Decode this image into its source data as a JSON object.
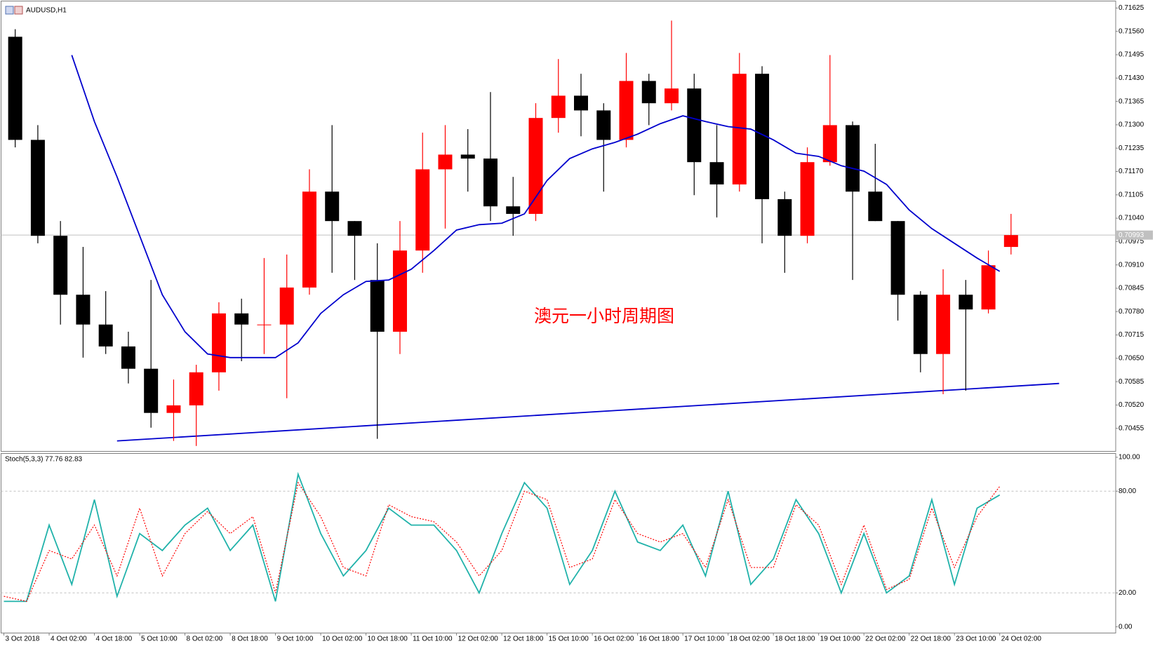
{
  "chart_data": [
    {
      "type": "candlestick",
      "title": "AUDUSD,H1",
      "annotation": "澳元一小时周期图",
      "annotation_color": "#ff0000",
      "up_color": "#ff0000",
      "down_color": "#000000",
      "x": [
        0,
        8,
        16,
        24,
        32,
        40,
        48,
        56,
        64,
        72,
        80,
        88,
        96,
        104,
        112,
        120,
        128,
        136,
        144,
        152,
        160,
        168,
        176,
        184,
        192,
        200,
        208,
        216,
        224,
        232,
        240,
        248,
        256,
        264,
        272,
        280,
        288,
        296,
        304,
        312,
        320,
        328,
        336,
        344,
        352
      ],
      "open": [
        0.71545,
        0.71258,
        0.70991,
        0.70827,
        0.70744,
        0.70683,
        0.70621,
        0.70498,
        0.70519,
        0.70611,
        0.70775,
        0.70744,
        0.70744,
        0.70847,
        0.71114,
        0.71032,
        0.70868,
        0.70724,
        0.7095,
        0.71176,
        0.71217,
        0.71206,
        0.71073,
        0.71052,
        0.71319,
        0.71381,
        0.7134,
        0.71258,
        0.71422,
        0.7136,
        0.71401,
        0.71196,
        0.71134,
        0.71442,
        0.71093,
        0.70991,
        0.71196,
        0.71299,
        0.71114,
        0.71032,
        0.70827,
        0.70662,
        0.70827,
        0.70786,
        0.7096
      ],
      "high": [
        0.71566,
        0.71299,
        0.71032,
        0.7096,
        0.70837,
        0.70724,
        0.70868,
        0.70591,
        0.70632,
        0.70806,
        0.70816,
        0.70929,
        0.70939,
        0.71176,
        0.71299,
        0.71032,
        0.7097,
        0.71032,
        0.71278,
        0.71299,
        0.71288,
        0.71391,
        0.71155,
        0.7136,
        0.71483,
        0.71442,
        0.7136,
        0.715,
        0.71442,
        0.7159,
        0.71442,
        0.71299,
        0.715,
        0.71463,
        0.71114,
        0.71237,
        0.71494,
        0.71309,
        0.71247,
        0.71032,
        0.70837,
        0.70898,
        0.70868,
        0.7095,
        0.71052
      ],
      "low": [
        0.71237,
        0.7097,
        0.70744,
        0.70652,
        0.70662,
        0.7058,
        0.70457,
        0.7042,
        0.70406,
        0.7056,
        0.70642,
        0.70662,
        0.70539,
        0.70827,
        0.70888,
        0.70868,
        0.70426,
        0.70662,
        0.70888,
        0.71011,
        0.71114,
        0.71032,
        0.70991,
        0.71032,
        0.71278,
        0.71268,
        0.71114,
        0.71237,
        0.71299,
        0.7134,
        0.71104,
        0.71042,
        0.71114,
        0.7097,
        0.70888,
        0.7097,
        0.71186,
        0.70868,
        0.71032,
        0.70755,
        0.70611,
        0.7055,
        0.7056,
        0.70775,
        0.70939
      ],
      "close": [
        0.71258,
        0.70991,
        0.70827,
        0.70744,
        0.70683,
        0.70621,
        0.70498,
        0.70519,
        0.70611,
        0.70775,
        0.70744,
        0.70744,
        0.70847,
        0.71114,
        0.71032,
        0.70991,
        0.70724,
        0.7095,
        0.71176,
        0.71217,
        0.71206,
        0.71073,
        0.71052,
        0.71319,
        0.71381,
        0.7134,
        0.71258,
        0.71422,
        0.7136,
        0.71401,
        0.71196,
        0.71134,
        0.71442,
        0.71093,
        0.70991,
        0.71196,
        0.71299,
        0.71114,
        0.71032,
        0.70827,
        0.70662,
        0.70827,
        0.70786,
        0.70909,
        0.70993
      ],
      "series": [
        {
          "color": "#0000cd",
          "values": [
            null,
            null,
            null,
            0.71494,
            0.71309,
            0.71155,
            0.70991,
            0.70827,
            0.70724,
            0.70662,
            0.70652,
            0.70652,
            0.70652,
            0.70693,
            0.70775,
            0.70827,
            0.70864,
            0.70868,
            0.70898,
            0.7095,
            0.71007,
            0.71022,
            0.71026,
            0.71052,
            0.71145,
            0.71206,
            0.71233,
            0.71251,
            0.71274,
            0.71303,
            0.71325,
            0.71309,
            0.71295,
            0.71288,
            0.71258,
            0.71221,
            0.71212,
            0.71186,
            0.71171,
            0.71134,
            0.71063,
            0.71011,
            0.7097,
            0.70929,
            0.70892
          ]
        },
        {
          "color": "#0000cd",
          "x": [
            40,
            373
          ],
          "values": [
            0.7042,
            0.7058
          ]
        }
      ],
      "current_price": 0.70993,
      "xlim": [
        -1,
        393
      ],
      "ylim": [
        0.70391,
        0.71637
      ],
      "yticks": [
        0.70455,
        {
          "value": 0.7052,
          "label": "0.70520"
        },
        0.70585,
        {
          "value": 0.7065,
          "label": "0.70650"
        },
        0.70715,
        {
          "value": 0.7078,
          "label": "0.70780"
        },
        0.70845,
        {
          "value": 0.7091,
          "label": "0.70910"
        },
        0.70975,
        {
          "value": 0.7104,
          "label": "0.71040"
        },
        0.71105,
        {
          "value": 0.7117,
          "label": "0.71170"
        },
        0.71235,
        {
          "value": 0.713,
          "label": "0.71300"
        },
        0.71365,
        {
          "value": 0.7143,
          "label": "0.71430"
        },
        0.71495,
        {
          "value": 0.7156,
          "label": "0.71560"
        },
        0.71625
      ]
    },
    {
      "type": "line",
      "title": "Stoch(5,3,3) 77.76 82.83",
      "x": [
        0,
        8,
        16,
        24,
        32,
        40,
        48,
        56,
        64,
        72,
        80,
        88,
        96,
        104,
        112,
        120,
        128,
        136,
        144,
        152,
        160,
        168,
        176,
        184,
        192,
        200,
        208,
        216,
        224,
        232,
        240,
        248,
        256,
        264,
        272,
        280,
        288,
        296,
        304,
        312,
        320,
        328,
        336,
        344,
        352
      ],
      "series": [
        {
          "color": "#20b2aa",
          "dash": false,
          "values": [
            15,
            15,
            60,
            25,
            75,
            18,
            55,
            45,
            60,
            70,
            45,
            60,
            15,
            90,
            55,
            30,
            45,
            70,
            60,
            60,
            45,
            20,
            55,
            85,
            70,
            25,
            45,
            80,
            50,
            45,
            60,
            30,
            80,
            25,
            40,
            75,
            55,
            20,
            55,
            20,
            30,
            75,
            25,
            70,
            77.76
          ]
        },
        {
          "color": "#ff0000",
          "dash": true,
          "values": [
            18,
            15,
            45,
            40,
            60,
            30,
            70,
            30,
            55,
            68,
            55,
            65,
            20,
            85,
            65,
            35,
            30,
            72,
            65,
            62,
            50,
            30,
            45,
            80,
            75,
            35,
            40,
            75,
            55,
            50,
            55,
            35,
            75,
            35,
            35,
            72,
            60,
            25,
            60,
            22,
            28,
            70,
            35,
            65,
            82.83
          ]
        }
      ],
      "levels": [
        20,
        80
      ],
      "xlim": [
        -1,
        393
      ],
      "ylim": [
        -3.5,
        102.2
      ],
      "yticks": [
        {
          "value": 0,
          "label": "0.00"
        },
        {
          "value": 20,
          "label": "20.00"
        },
        {
          "value": 80,
          "label": "80.00"
        },
        {
          "value": 100,
          "label": "100.00"
        }
      ],
      "xticks": [
        {
          "value": 0,
          "label": "3 Oct 2018"
        },
        {
          "value": 16,
          "label": "4 Oct 02:00"
        },
        {
          "value": 32,
          "label": "4 Oct 18:00"
        },
        {
          "value": 48,
          "label": "5 Oct 10:00"
        },
        {
          "value": 64,
          "label": "8 Oct 02:00"
        },
        {
          "value": 80,
          "label": "8 Oct 18:00"
        },
        {
          "value": 96,
          "label": "9 Oct 10:00"
        },
        {
          "value": 112,
          "label": "10 Oct 02:00"
        },
        {
          "value": 128,
          "label": "10 Oct 18:00"
        },
        {
          "value": 144,
          "label": "11 Oct 10:00"
        },
        {
          "value": 160,
          "label": "12 Oct 02:00"
        },
        {
          "value": 176,
          "label": "12 Oct 18:00"
        },
        {
          "value": 192,
          "label": "15 Oct 10:00"
        },
        {
          "value": 208,
          "label": "16 Oct 02:00"
        },
        {
          "value": 224,
          "label": "16 Oct 18:00"
        },
        {
          "value": 240,
          "label": "17 Oct 10:00"
        },
        {
          "value": 256,
          "label": "18 Oct 02:00"
        },
        {
          "value": 272,
          "label": "18 Oct 18:00"
        },
        {
          "value": 288,
          "label": "19 Oct 10:00"
        },
        {
          "value": 304,
          "label": "22 Oct 02:00"
        },
        {
          "value": 320,
          "label": "22 Oct 18:00"
        },
        {
          "value": 336,
          "label": "23 Oct 10:00"
        },
        {
          "value": 352,
          "label": "24 Oct 02:00"
        }
      ]
    }
  ]
}
